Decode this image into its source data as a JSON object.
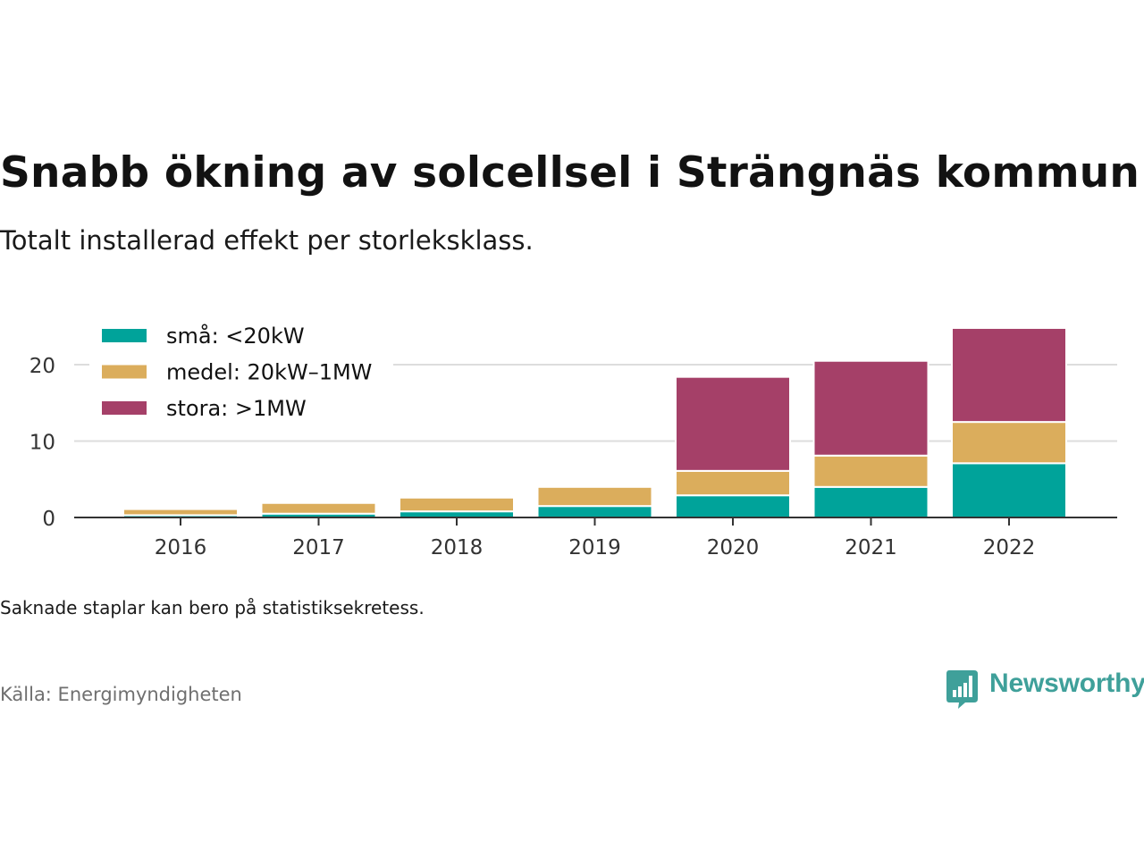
{
  "title": "Snabb ökning av solcellsel i Strängnäs kommun",
  "subtitle": "Totalt installerad effekt per storleksklass.",
  "note": "Saknade staplar kan bero på statistiksekretess.",
  "source": "Källa: Energimyndigheten",
  "logo": {
    "text": "Newsworthy",
    "icon": "newsworthy-chart-bubble-icon",
    "color": "#3fa09a"
  },
  "chart_data": {
    "type": "bar",
    "stacked": true,
    "categories": [
      "2016",
      "2017",
      "2018",
      "2019",
      "2020",
      "2021",
      "2022"
    ],
    "series": [
      {
        "name": "små: <20kW",
        "color": "#00a39a",
        "values": [
          0.3,
          0.5,
          0.8,
          1.5,
          2.9,
          4.0,
          7.1
        ]
      },
      {
        "name": "medel: 20kW–1MW",
        "color": "#dbad5c",
        "values": [
          0.8,
          1.4,
          1.8,
          2.5,
          3.2,
          4.1,
          5.4
        ]
      },
      {
        "name": "stora: >1MW",
        "color": "#a54068",
        "values": [
          0,
          0,
          0,
          0,
          12.3,
          12.4,
          12.3
        ]
      }
    ],
    "yticks": [
      0,
      10,
      20
    ],
    "ylim": [
      0,
      25
    ],
    "grid": true,
    "legend": "top-left"
  }
}
